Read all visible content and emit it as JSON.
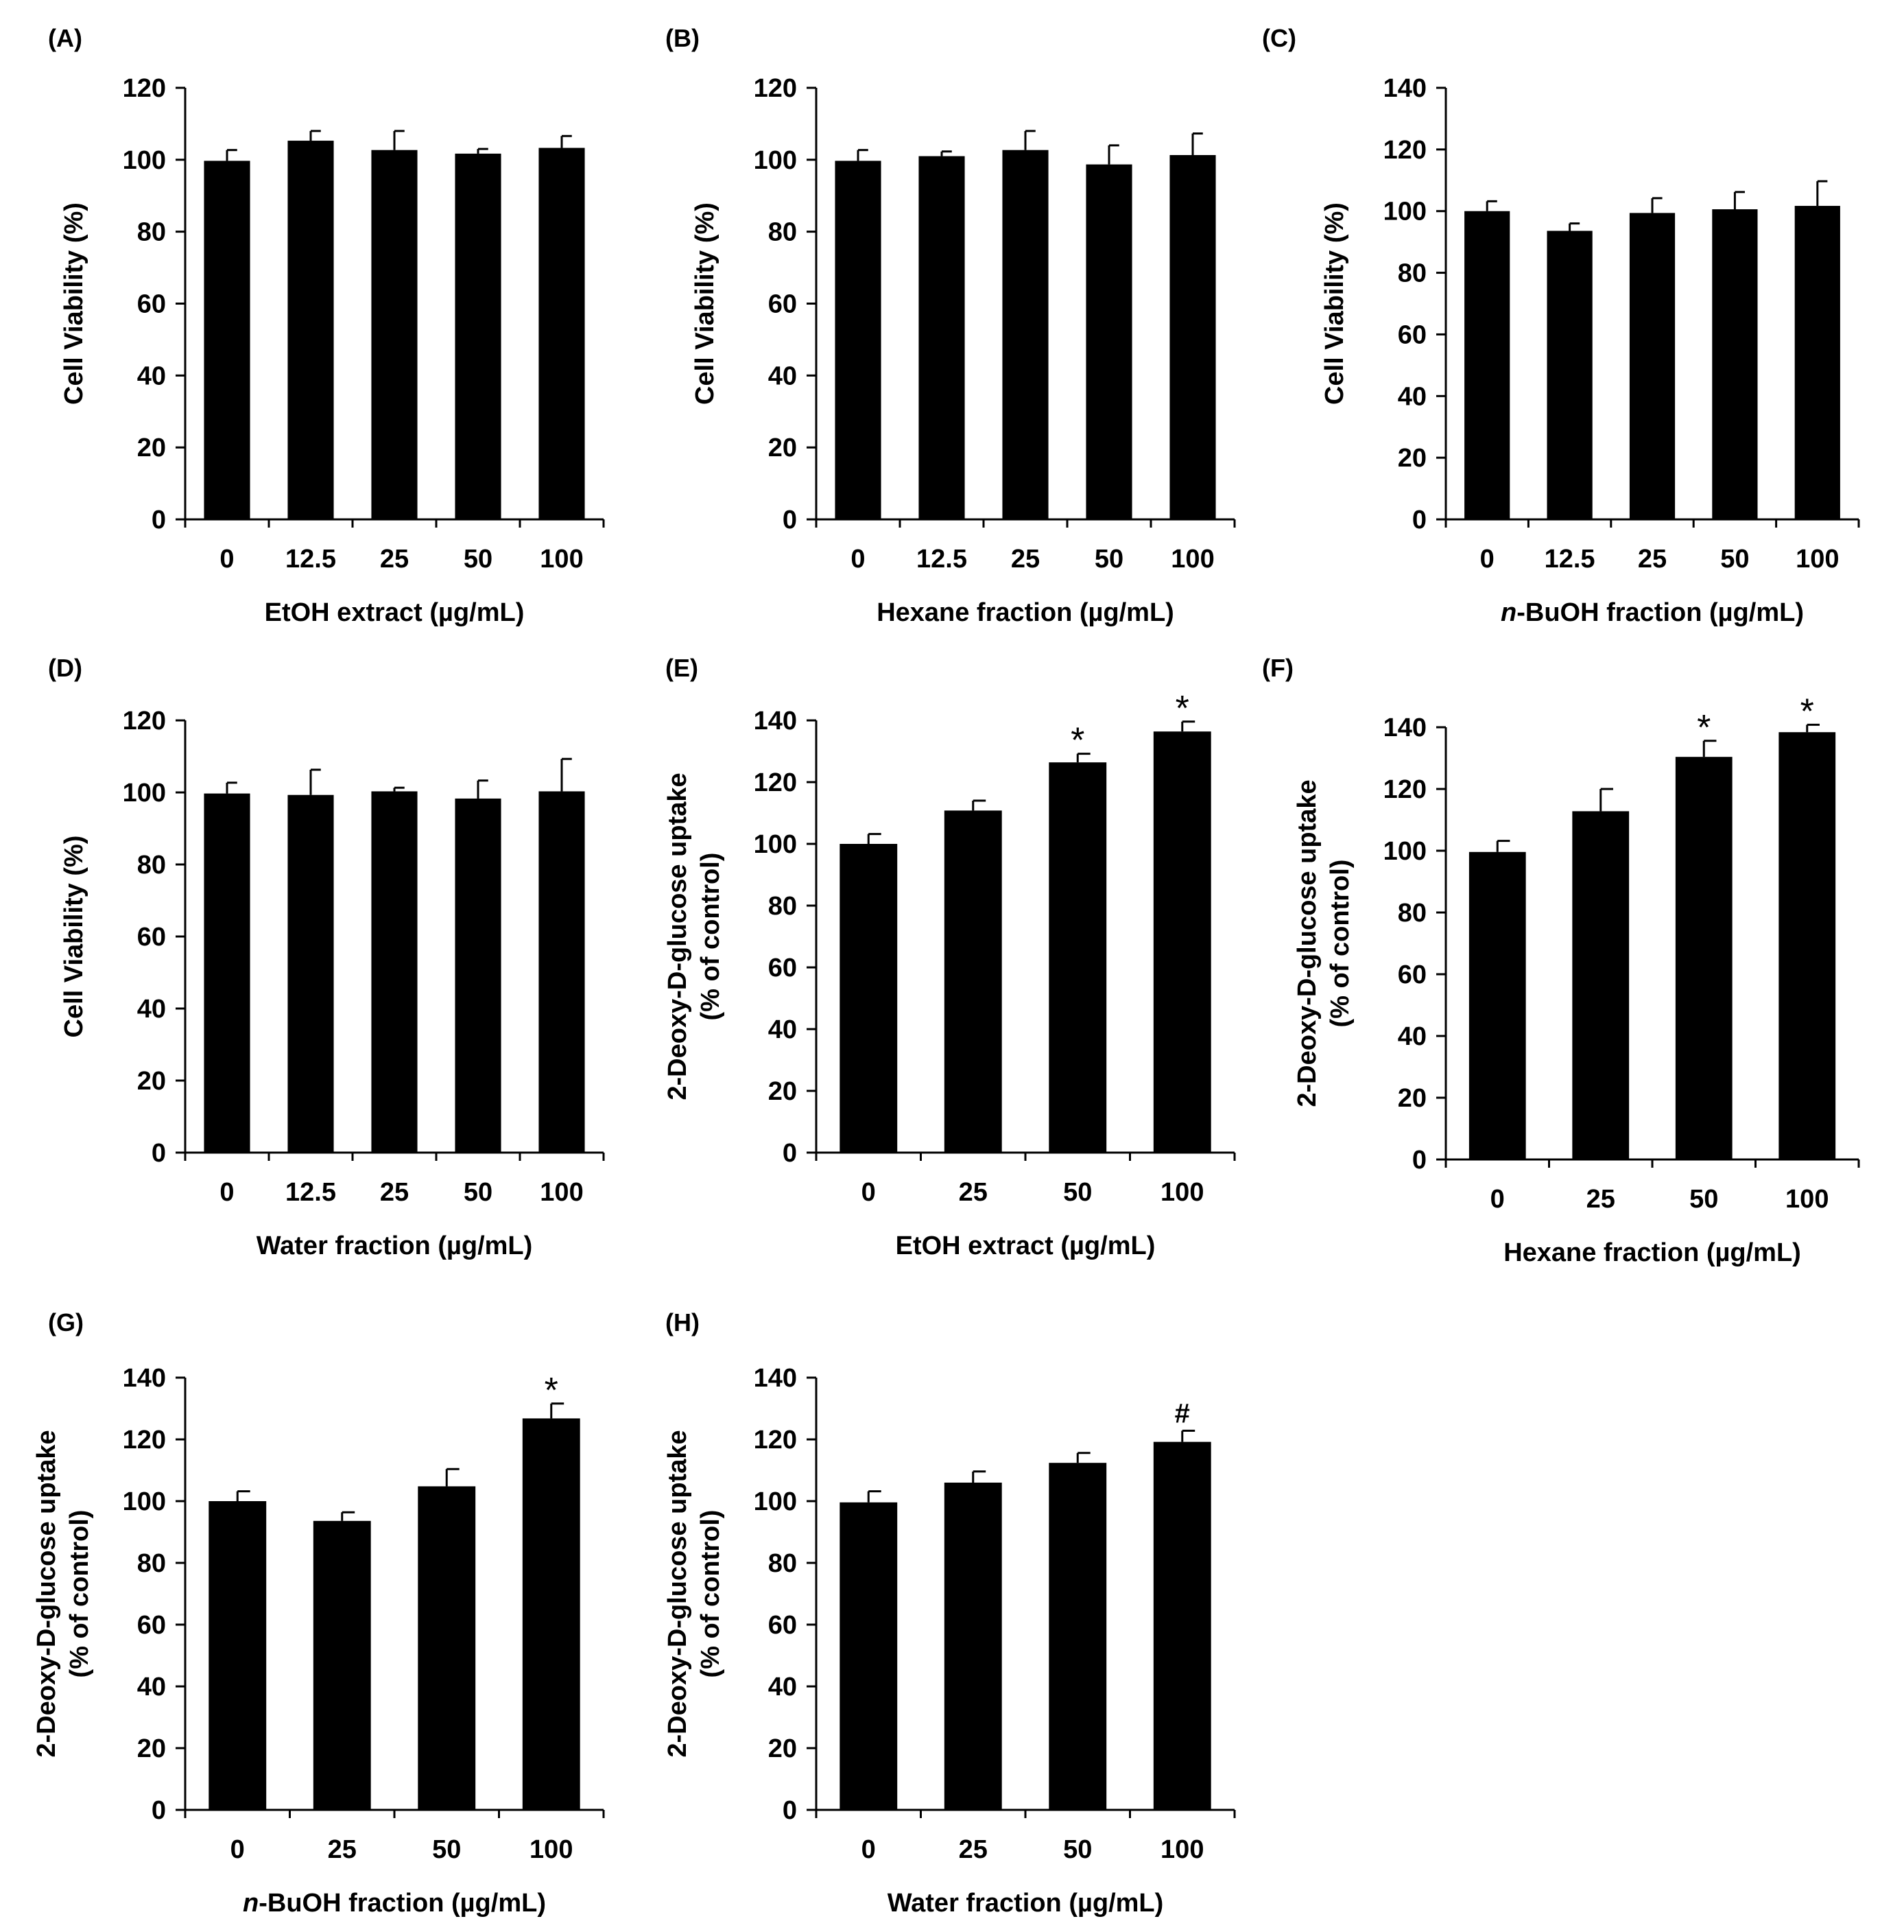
{
  "chart_data": [
    {
      "panel": "(A)",
      "type": "bar",
      "ylabel_lines": [
        "Cell Viability (%)"
      ],
      "xlabel": "EtOH extract (µg/mL)",
      "ylim": [
        0,
        120
      ],
      "ytick_step": 20,
      "categories": [
        "0",
        "12.5",
        "25",
        "50",
        "100"
      ],
      "values": [
        99.7,
        105.3,
        102.7,
        101.7,
        103.3
      ],
      "errors": [
        3.0,
        2.7,
        5.3,
        1.3,
        3.3
      ],
      "annotations": [
        "",
        "",
        "",
        "",
        ""
      ]
    },
    {
      "panel": "(B)",
      "type": "bar",
      "ylabel_lines": [
        "Cell Viability (%)"
      ],
      "xlabel": "Hexane fraction (µg/mL)",
      "ylim": [
        0,
        120
      ],
      "ytick_step": 20,
      "categories": [
        "0",
        "12.5",
        "25",
        "50",
        "100"
      ],
      "values": [
        99.7,
        101.0,
        102.7,
        98.7,
        101.3
      ],
      "errors": [
        3.0,
        1.3,
        5.3,
        5.3,
        6.0
      ],
      "annotations": [
        "",
        "",
        "",
        "",
        ""
      ]
    },
    {
      "panel": "(C)",
      "type": "bar",
      "ylabel_lines": [
        "Cell Viability (%)"
      ],
      "xlabel_prefix": "n",
      "xlabel": "-BuOH fraction (µg/mL)",
      "ylim": [
        0,
        140
      ],
      "ytick_step": 20,
      "categories": [
        "0",
        "12.5",
        "25",
        "50",
        "100"
      ],
      "values": [
        100.0,
        93.6,
        99.4,
        100.6,
        101.7
      ],
      "errors": [
        3.2,
        2.4,
        4.8,
        5.6,
        8.0
      ],
      "annotations": [
        "",
        "",
        "",
        "",
        ""
      ]
    },
    {
      "panel": "(D)",
      "type": "bar",
      "ylabel_lines": [
        "Cell Viability (%)"
      ],
      "xlabel": "Water fraction (µg/mL)",
      "ylim": [
        0,
        120
      ],
      "ytick_step": 20,
      "categories": [
        "0",
        "12.5",
        "25",
        "50",
        "100"
      ],
      "values": [
        99.7,
        99.3,
        100.3,
        98.3,
        100.3
      ],
      "errors": [
        3.0,
        7.0,
        1.0,
        5.0,
        9.0
      ],
      "annotations": [
        "",
        "",
        "",
        "",
        ""
      ]
    },
    {
      "panel": "(E)",
      "type": "bar",
      "ylabel_lines": [
        "2-Deoxy-D-glucose uptake",
        "(% of control)"
      ],
      "xlabel": "EtOH extract (µg/mL)",
      "ylim": [
        0,
        140
      ],
      "ytick_step": 20,
      "categories": [
        "0",
        "25",
        "50",
        "100"
      ],
      "values": [
        100.0,
        110.8,
        126.4,
        136.4
      ],
      "errors": [
        3.2,
        3.2,
        2.8,
        3.2
      ],
      "annotations": [
        "",
        "",
        "*",
        "*"
      ]
    },
    {
      "panel": "(F)",
      "type": "bar",
      "ylabel_lines": [
        "2-Deoxy-D-glucose uptake",
        "(% of control)"
      ],
      "xlabel": "Hexane fraction (µg/mL)",
      "ylim": [
        0,
        140
      ],
      "ytick_step": 20,
      "categories": [
        "0",
        "25",
        "50",
        "100"
      ],
      "values": [
        99.6,
        112.8,
        130.4,
        138.4
      ],
      "errors": [
        3.6,
        7.2,
        5.2,
        2.4
      ],
      "annotations": [
        "",
        "",
        "*",
        "*"
      ]
    },
    {
      "panel": "(G)",
      "type": "bar",
      "ylabel_lines": [
        "2-Deoxy-D-glucose uptake",
        "(% of control)"
      ],
      "xlabel_prefix": "n",
      "xlabel": "-BuOH fraction (µg/mL)",
      "ylim": [
        0,
        140
      ],
      "ytick_step": 20,
      "categories": [
        "0",
        "25",
        "50",
        "100"
      ],
      "values": [
        100.0,
        93.6,
        104.8,
        126.8
      ],
      "errors": [
        3.2,
        2.8,
        5.6,
        4.8
      ],
      "annotations": [
        "",
        "",
        "",
        "*"
      ]
    },
    {
      "panel": "(H)",
      "type": "bar",
      "ylabel_lines": [
        "2-Deoxy-D-glucose uptake",
        "(% of control)"
      ],
      "xlabel": "Water fraction (µg/mL)",
      "ylim": [
        0,
        140
      ],
      "ytick_step": 20,
      "categories": [
        "0",
        "25",
        "50",
        "100"
      ],
      "values": [
        99.6,
        106.0,
        112.4,
        119.2
      ],
      "errors": [
        3.6,
        3.6,
        3.2,
        3.6
      ],
      "annotations": [
        "",
        "",
        "",
        "#"
      ]
    }
  ],
  "colors": {
    "bar": "#000000",
    "axis": "#000000",
    "background": "#ffffff"
  }
}
